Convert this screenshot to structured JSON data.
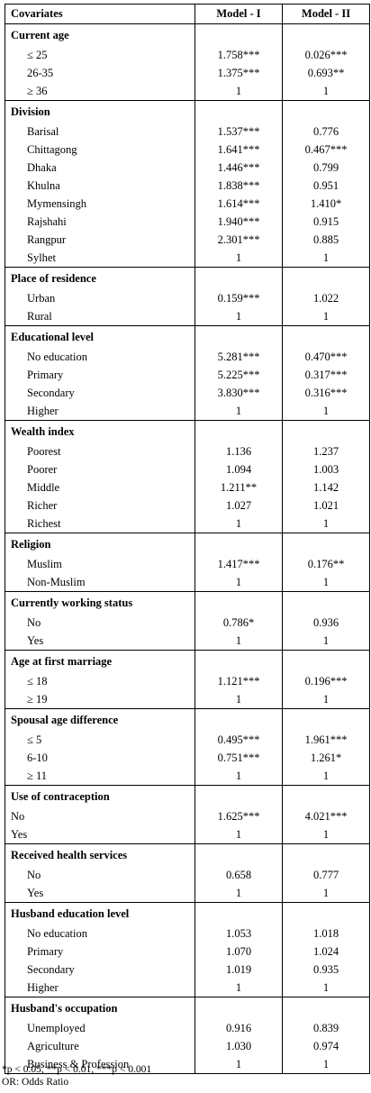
{
  "header": {
    "covariates": "Covariates",
    "model1": "Model - I",
    "model2": "Model - II"
  },
  "groups": [
    {
      "title": "Current age",
      "rows": [
        {
          "label": "≤ 25",
          "m1": "1.758***",
          "m2": "0.026***"
        },
        {
          "label": "26-35",
          "m1": "1.375***",
          "m2": "0.693**"
        },
        {
          "label": "≥ 36",
          "m1": "1",
          "m2": "1"
        }
      ]
    },
    {
      "title": "Division",
      "rows": [
        {
          "label": "Barisal",
          "m1": "1.537***",
          "m2": "0.776"
        },
        {
          "label": "Chittagong",
          "m1": "1.641***",
          "m2": "0.467***"
        },
        {
          "label": "Dhaka",
          "m1": "1.446***",
          "m2": "0.799"
        },
        {
          "label": "Khulna",
          "m1": "1.838***",
          "m2": "0.951"
        },
        {
          "label": "Mymensingh",
          "m1": "1.614***",
          "m2": "1.410*"
        },
        {
          "label": "Rajshahi",
          "m1": "1.940***",
          "m2": "0.915"
        },
        {
          "label": "Rangpur",
          "m1": "2.301***",
          "m2": "0.885"
        },
        {
          "label": "Sylhet",
          "m1": "1",
          "m2": "1"
        }
      ]
    },
    {
      "title": "Place of residence",
      "rows": [
        {
          "label": "Urban",
          "m1": "0.159***",
          "m2": "1.022"
        },
        {
          "label": "Rural",
          "m1": "1",
          "m2": "1"
        }
      ]
    },
    {
      "title": "Educational level",
      "rows": [
        {
          "label": "No education",
          "m1": "5.281***",
          "m2": "0.470***"
        },
        {
          "label": "Primary",
          "m1": "5.225***",
          "m2": "0.317***"
        },
        {
          "label": "Secondary",
          "m1": "3.830***",
          "m2": "0.316***"
        },
        {
          "label": "Higher",
          "m1": "1",
          "m2": "1"
        }
      ]
    },
    {
      "title": "Wealth index",
      "rows": [
        {
          "label": "Poorest",
          "m1": "1.136",
          "m2": "1.237"
        },
        {
          "label": "Poorer",
          "m1": "1.094",
          "m2": "1.003"
        },
        {
          "label": "Middle",
          "m1": "1.211**",
          "m2": "1.142"
        },
        {
          "label": "Richer",
          "m1": "1.027",
          "m2": "1.021"
        },
        {
          "label": "Richest",
          "m1": "1",
          "m2": "1"
        }
      ]
    },
    {
      "title": "Religion",
      "rows": [
        {
          "label": "Muslim",
          "m1": "1.417***",
          "m2": "0.176**"
        },
        {
          "label": "Non-Muslim",
          "m1": "1",
          "m2": "1"
        }
      ]
    },
    {
      "title": "Currently working status",
      "rows": [
        {
          "label": "No",
          "m1": "0.786*",
          "m2": "0.936"
        },
        {
          "label": "Yes",
          "m1": "1",
          "m2": "1"
        }
      ]
    },
    {
      "title": "Age at first marriage",
      "rows": [
        {
          "label": "≤ 18",
          "m1": "1.121***",
          "m2": "0.196***"
        },
        {
          "label": "≥ 19",
          "m1": "1",
          "m2": "1"
        }
      ]
    },
    {
      "title": "Spousal age difference",
      "rows": [
        {
          "label": "≤ 5",
          "m1": "0.495***",
          "m2": "1.961***"
        },
        {
          "label": "6-10",
          "m1": "0.751***",
          "m2": "1.261*"
        },
        {
          "label": "≥ 11",
          "m1": "1",
          "m2": "1"
        }
      ]
    },
    {
      "title": "Use of contraception",
      "flush": true,
      "rows": [
        {
          "label": "No",
          "m1": "1.625***",
          "m2": "4.021***"
        },
        {
          "label": "Yes",
          "m1": "1",
          "m2": "1"
        }
      ]
    },
    {
      "title": "Received health services",
      "rows": [
        {
          "label": "No",
          "m1": "0.658",
          "m2": "0.777"
        },
        {
          "label": "Yes",
          "m1": "1",
          "m2": "1"
        }
      ]
    },
    {
      "title": "Husband education level",
      "rows": [
        {
          "label": "No education",
          "m1": "1.053",
          "m2": "1.018"
        },
        {
          "label": "Primary",
          "m1": "1.070",
          "m2": "1.024"
        },
        {
          "label": "Secondary",
          "m1": "1.019",
          "m2": "0.935"
        },
        {
          "label": "Higher",
          "m1": "1",
          "m2": "1"
        }
      ]
    },
    {
      "title": "Husband's occupation",
      "rows": [
        {
          "label": "Unemployed",
          "m1": "0.916",
          "m2": "0.839"
        },
        {
          "label": "Agriculture",
          "m1": "1.030",
          "m2": "0.974"
        },
        {
          "label": "Business & Profession",
          "m1": "1",
          "m2": "1"
        }
      ]
    }
  ],
  "notes": {
    "significance": "*p < 0.05, **p < 0.01, ***p < 0.001",
    "abbreviation": "OR: Odds Ratio"
  }
}
